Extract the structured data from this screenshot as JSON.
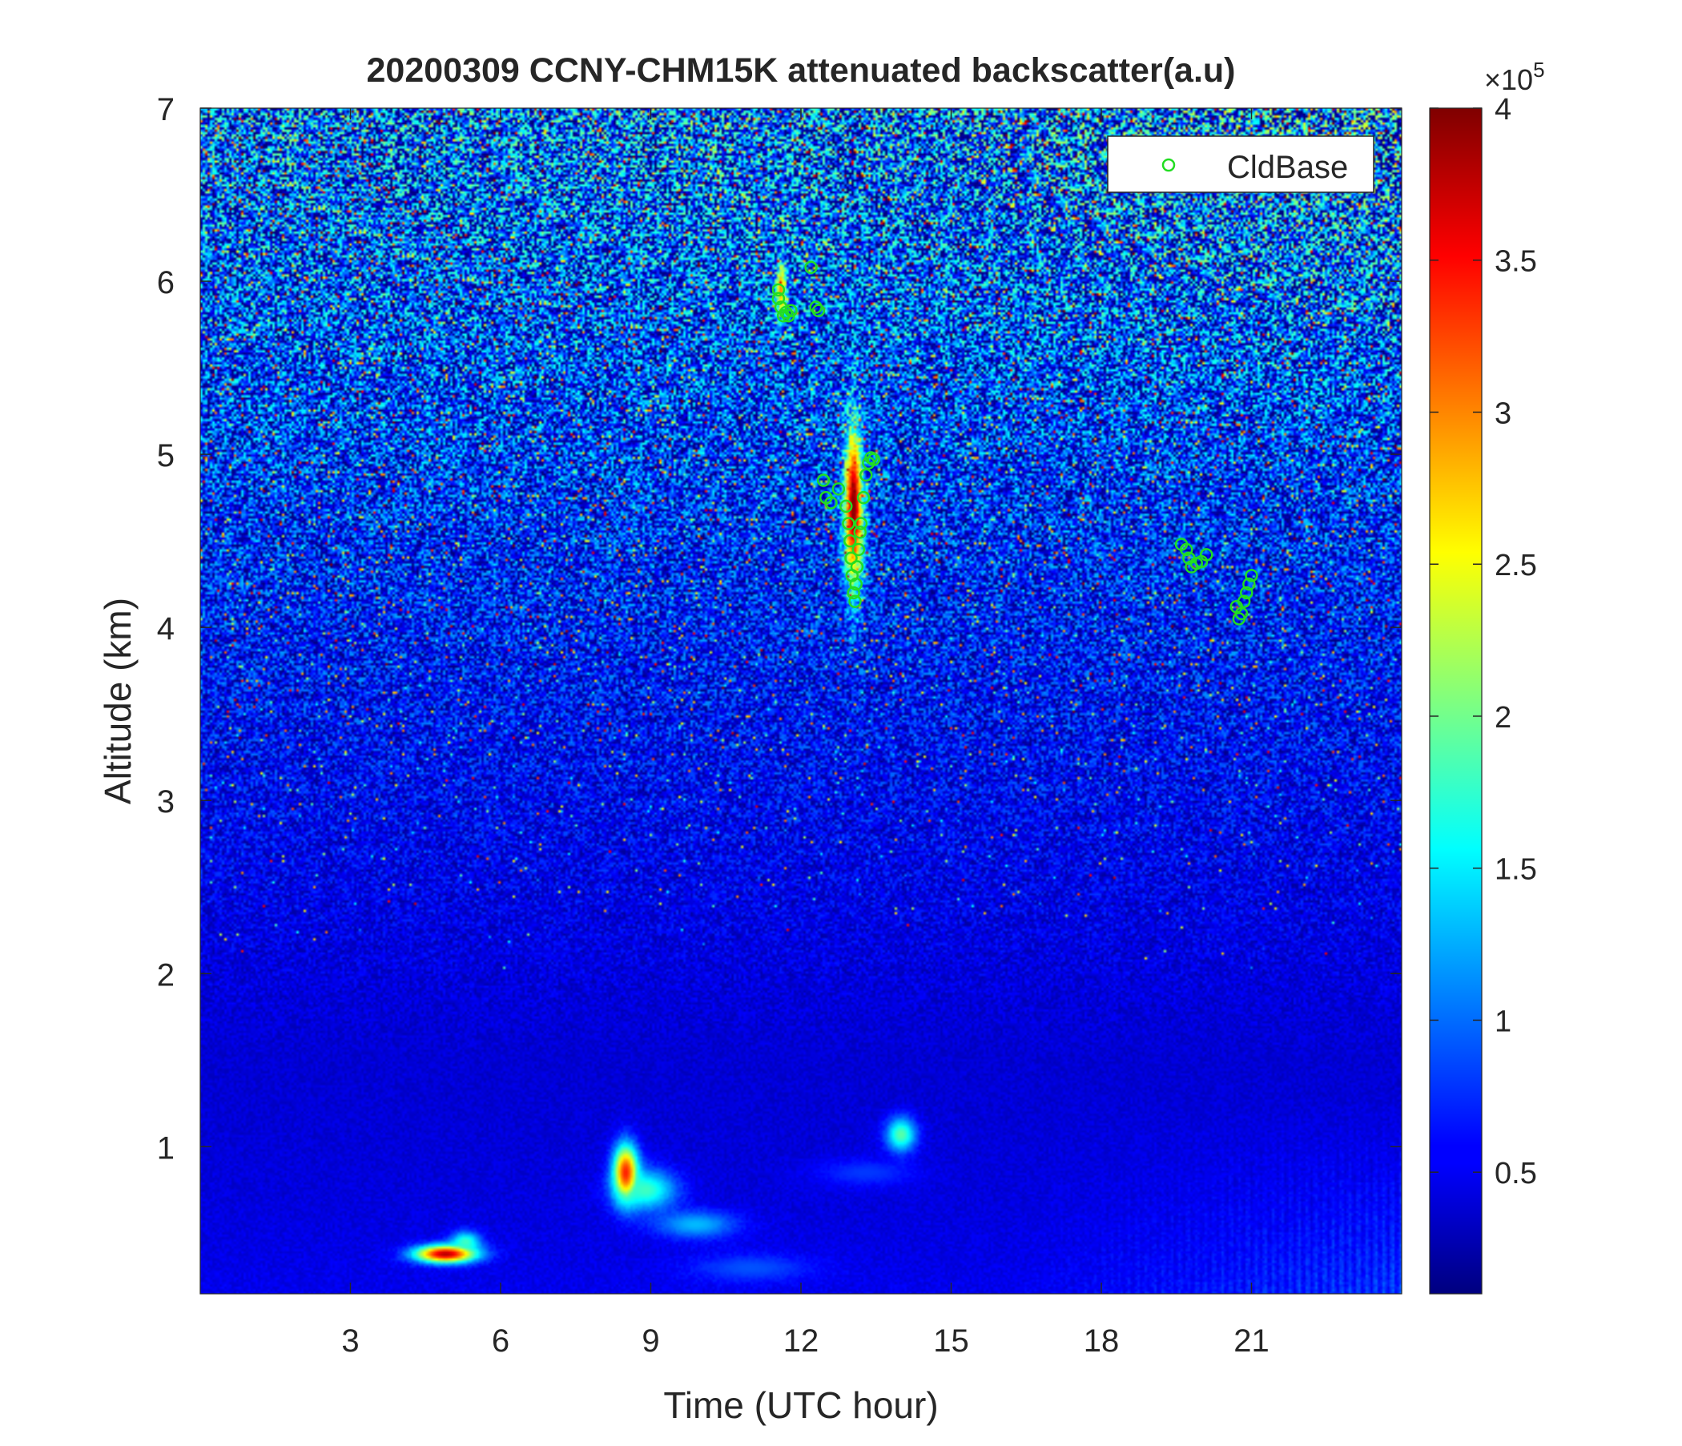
{
  "chart_data": {
    "type": "heatmap",
    "title": "20200309 CCNY-CHM15K attenuated backscatter(a.u)",
    "xlabel": "Time (UTC hour)",
    "ylabel": "Altitude (km)",
    "xlim": [
      0,
      24
    ],
    "ylim": [
      0.15,
      7
    ],
    "xticks": [
      3,
      6,
      9,
      12,
      15,
      18,
      21
    ],
    "yticks": [
      1,
      2,
      3,
      4,
      5,
      6,
      7
    ],
    "xtick_labels": [
      "3",
      "6",
      "9",
      "12",
      "15",
      "18",
      "21"
    ],
    "ytick_labels": [
      "1",
      "2",
      "3",
      "4",
      "5",
      "6",
      "7"
    ],
    "colorbar": {
      "colormap": "jet",
      "clim": [
        0.1,
        4
      ],
      "ticks": [
        0.5,
        1,
        1.5,
        2,
        2.5,
        3,
        3.5,
        4
      ],
      "tick_labels": [
        "0.5",
        "1",
        "1.5",
        "2",
        "2.5",
        "3",
        "3.5",
        "4"
      ],
      "multiplier_prefix": "×10",
      "multiplier_exponent": "5"
    },
    "legend": {
      "position": "top-right",
      "entries": [
        {
          "label": "CldBase",
          "marker": "circle",
          "color": "#22dd22"
        }
      ]
    },
    "aerosol_features": [
      {
        "t": 4.9,
        "z": 0.38,
        "ht": 0.6,
        "hz": 0.05,
        "v": 3.8
      },
      {
        "t": 5.3,
        "z": 0.45,
        "ht": 0.3,
        "hz": 0.06,
        "v": 1.8
      },
      {
        "t": 8.5,
        "z": 0.85,
        "ht": 0.25,
        "hz": 0.16,
        "v": 3.4
      },
      {
        "t": 8.9,
        "z": 0.75,
        "ht": 0.6,
        "hz": 0.12,
        "v": 1.8
      },
      {
        "t": 9.9,
        "z": 0.55,
        "ht": 0.8,
        "hz": 0.08,
        "v": 1.3
      },
      {
        "t": 11.0,
        "z": 0.3,
        "ht": 1.2,
        "hz": 0.08,
        "v": 0.9
      },
      {
        "t": 14.0,
        "z": 1.07,
        "ht": 0.3,
        "hz": 0.1,
        "v": 1.9
      },
      {
        "t": 13.3,
        "z": 0.85,
        "ht": 1.0,
        "hz": 0.08,
        "v": 0.8
      },
      {
        "t": 13.05,
        "z": 4.7,
        "ht": 0.18,
        "hz": 0.45,
        "v": 4.0
      },
      {
        "t": 11.6,
        "z": 5.95,
        "ht": 0.1,
        "hz": 0.15,
        "v": 3.0
      }
    ],
    "cloud_base_points": [
      [
        11.55,
        5.9
      ],
      [
        11.6,
        5.85
      ],
      [
        11.65,
        5.8
      ],
      [
        11.7,
        5.82
      ],
      [
        11.75,
        5.8
      ],
      [
        11.8,
        5.83
      ],
      [
        11.55,
        5.95
      ],
      [
        12.2,
        6.08
      ],
      [
        12.3,
        5.85
      ],
      [
        12.35,
        5.83
      ],
      [
        12.45,
        4.85
      ],
      [
        12.5,
        4.75
      ],
      [
        12.6,
        4.72
      ],
      [
        12.75,
        4.8
      ],
      [
        12.9,
        4.7
      ],
      [
        12.95,
        4.6
      ],
      [
        12.98,
        4.5
      ],
      [
        13.0,
        4.4
      ],
      [
        13.02,
        4.3
      ],
      [
        13.05,
        4.2
      ],
      [
        13.08,
        4.15
      ],
      [
        13.1,
        4.25
      ],
      [
        13.12,
        4.35
      ],
      [
        13.15,
        4.45
      ],
      [
        13.18,
        4.55
      ],
      [
        13.2,
        4.6
      ],
      [
        13.25,
        4.75
      ],
      [
        13.3,
        4.88
      ],
      [
        13.35,
        4.95
      ],
      [
        13.4,
        4.98
      ],
      [
        13.45,
        4.97
      ],
      [
        19.6,
        4.48
      ],
      [
        19.7,
        4.45
      ],
      [
        19.75,
        4.4
      ],
      [
        19.8,
        4.35
      ],
      [
        19.9,
        4.37
      ],
      [
        20.0,
        4.38
      ],
      [
        20.1,
        4.42
      ],
      [
        20.7,
        4.12
      ],
      [
        20.75,
        4.05
      ],
      [
        20.8,
        4.08
      ],
      [
        20.85,
        4.15
      ],
      [
        20.9,
        4.2
      ],
      [
        20.95,
        4.25
      ],
      [
        21.0,
        4.3
      ]
    ]
  }
}
